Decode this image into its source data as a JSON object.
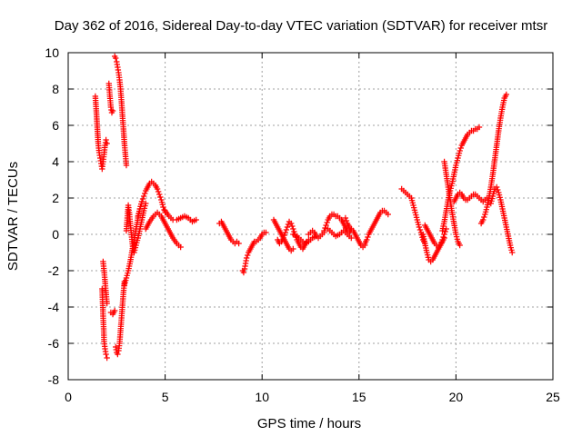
{
  "chart_data": {
    "type": "scatter",
    "title": "Day 362 of 2016, Sidereal Day-to-day VTEC variation (SDTVAR) for receiver mtsr",
    "xlabel": "GPS time / hours",
    "ylabel": "SDTVAR / TECUs",
    "xlim": [
      0,
      25
    ],
    "ylim": [
      -8,
      10
    ],
    "xticks": [
      0,
      5,
      10,
      15,
      20,
      25
    ],
    "xtick_labels": [
      "0",
      "5",
      "10",
      "15",
      "20",
      "25"
    ],
    "yticks": [
      -8,
      -6,
      -4,
      -2,
      0,
      2,
      4,
      6,
      8,
      10
    ],
    "ytick_labels": [
      "-8",
      "-6",
      "-4",
      "-2",
      "0",
      "2",
      "4",
      "6",
      "8",
      "10"
    ],
    "grid": true,
    "marker": "plus",
    "color": "#ff0000",
    "segments": [
      {
        "x": [
          1.4,
          1.45,
          1.5,
          1.55,
          1.6,
          1.65,
          1.7,
          1.75,
          1.8,
          1.85,
          1.9,
          1.95,
          2.0
        ],
        "y": [
          7.6,
          6.8,
          5.9,
          5.0,
          4.5,
          4.2,
          3.9,
          3.6,
          4.0,
          4.4,
          4.9,
          5.2,
          5.0
        ]
      },
      {
        "x": [
          1.75,
          1.78,
          1.8,
          1.83,
          1.85,
          1.9,
          1.95,
          2.0
        ],
        "y": [
          -3.0,
          -3.8,
          -4.5,
          -5.2,
          -5.9,
          -6.3,
          -6.6,
          -6.8
        ]
      },
      {
        "x": [
          1.8,
          1.85,
          1.9,
          1.95,
          2.0
        ],
        "y": [
          -1.5,
          -2.0,
          -2.6,
          -3.2,
          -3.8
        ]
      },
      {
        "x": [
          2.1,
          2.15,
          2.2,
          2.25,
          2.3
        ],
        "y": [
          8.3,
          7.6,
          7.0,
          6.7,
          6.8
        ]
      },
      {
        "x": [
          2.2,
          2.3,
          2.4
        ],
        "y": [
          -4.3,
          -4.4,
          -4.2
        ]
      },
      {
        "x": [
          2.4,
          2.45,
          2.5,
          2.55,
          2.6,
          2.65,
          2.7,
          2.75,
          2.8,
          2.85,
          2.9,
          2.95,
          3.0
        ],
        "y": [
          9.8,
          9.7,
          9.5,
          9.2,
          8.9,
          8.5,
          8.0,
          7.3,
          6.5,
          5.8,
          5.0,
          4.4,
          3.8
        ]
      },
      {
        "x": [
          2.45,
          2.5,
          2.55,
          2.6,
          2.65,
          2.7,
          2.75,
          2.8,
          2.85,
          2.9
        ],
        "y": [
          -6.2,
          -6.5,
          -6.6,
          -6.4,
          -6.0,
          -5.3,
          -4.6,
          -3.9,
          -3.2,
          -2.6
        ]
      },
      {
        "x": [
          2.9,
          3.0,
          3.1,
          3.2,
          3.3,
          3.4,
          3.5,
          3.6,
          3.7,
          3.8
        ],
        "y": [
          -2.8,
          -2.4,
          -2.0,
          -1.5,
          -0.9,
          -0.3,
          0.3,
          0.9,
          1.4,
          1.8
        ]
      },
      {
        "x": [
          3.0,
          3.05,
          3.1,
          3.15,
          3.2,
          3.25,
          3.3,
          3.35,
          3.4
        ],
        "y": [
          0.2,
          0.9,
          1.6,
          1.2,
          0.6,
          0.1,
          -0.4,
          -0.9,
          -0.5
        ]
      },
      {
        "x": [
          3.4,
          3.5,
          3.6,
          3.7,
          3.8,
          3.9,
          4.0
        ],
        "y": [
          -1.0,
          -0.6,
          -0.2,
          0.3,
          0.8,
          1.3,
          1.7
        ]
      },
      {
        "x": [
          3.6,
          3.7,
          3.8,
          3.9,
          4.0,
          4.1,
          4.2,
          4.3,
          4.4,
          4.5,
          4.6,
          4.7,
          4.8,
          4.9,
          5.0
        ],
        "y": [
          1.0,
          1.4,
          1.8,
          2.1,
          2.4,
          2.6,
          2.8,
          2.9,
          2.8,
          2.7,
          2.5,
          2.2,
          1.9,
          1.5,
          1.2
        ]
      },
      {
        "x": [
          4.0,
          4.2,
          4.4,
          4.6,
          4.8,
          5.0,
          5.2,
          5.4,
          5.6,
          5.8
        ],
        "y": [
          0.3,
          0.7,
          1.0,
          1.2,
          1.0,
          0.6,
          0.2,
          -0.2,
          -0.5,
          -0.7
        ]
      },
      {
        "x": [
          5.0,
          5.2,
          5.4,
          5.6,
          5.8,
          6.0,
          6.2,
          6.4,
          6.6
        ],
        "y": [
          1.3,
          1.0,
          0.8,
          0.8,
          0.9,
          1.0,
          0.9,
          0.7,
          0.8
        ]
      },
      {
        "x": [
          7.8,
          7.9,
          8.0,
          8.1,
          8.2,
          8.3,
          8.4,
          8.5,
          8.6,
          8.7,
          8.8
        ],
        "y": [
          0.6,
          0.7,
          0.5,
          0.3,
          0.1,
          -0.1,
          -0.3,
          -0.4,
          -0.5,
          -0.4,
          -0.5
        ]
      },
      {
        "x": [
          9.0,
          9.05,
          9.1,
          9.15,
          9.2,
          9.3,
          9.4,
          9.5,
          9.6,
          9.7,
          9.8,
          9.9,
          10.0,
          10.1,
          10.2
        ],
        "y": [
          -2.0,
          -2.1,
          -1.9,
          -1.6,
          -1.3,
          -1.0,
          -0.8,
          -0.6,
          -0.4,
          -0.4,
          -0.3,
          -0.2,
          0.0,
          0.1,
          0.1
        ]
      },
      {
        "x": [
          10.6,
          10.7,
          10.8,
          10.9,
          11.0,
          11.1,
          11.2,
          11.3,
          11.4,
          11.5,
          11.6
        ],
        "y": [
          0.8,
          0.6,
          0.4,
          0.2,
          0.0,
          -0.2,
          -0.4,
          -0.6,
          -0.8,
          -0.9,
          -0.8
        ]
      },
      {
        "x": [
          10.8,
          10.9,
          11.0,
          11.1,
          11.2,
          11.3,
          11.4,
          11.5,
          11.6,
          11.7,
          11.8,
          11.9,
          12.0,
          12.1,
          12.2,
          12.3,
          12.4
        ],
        "y": [
          -0.3,
          -0.5,
          -0.4,
          -0.2,
          0.1,
          0.4,
          0.7,
          0.6,
          0.3,
          0.0,
          -0.3,
          -0.5,
          -0.7,
          -0.8,
          -0.6,
          -0.4,
          -0.3
        ]
      },
      {
        "x": [
          11.6,
          11.8,
          12.0,
          12.2,
          12.4,
          12.6,
          12.8
        ],
        "y": [
          0.0,
          -0.1,
          -0.3,
          -0.5,
          -0.4,
          -0.2,
          -0.1
        ]
      },
      {
        "x": [
          12.4,
          12.5,
          12.6,
          12.7,
          12.8,
          12.9,
          13.0,
          13.1,
          13.2
        ],
        "y": [
          0.0,
          0.1,
          0.2,
          0.1,
          -0.1,
          -0.2,
          -0.1,
          0.0,
          0.1
        ]
      },
      {
        "x": [
          13.2,
          13.3,
          13.4,
          13.5,
          13.6,
          13.7,
          13.8,
          13.9,
          14.0,
          14.1,
          14.2,
          14.3,
          14.4,
          14.5,
          14.6
        ],
        "y": [
          0.2,
          0.5,
          0.8,
          1.0,
          1.1,
          1.1,
          1.0,
          1.0,
          0.9,
          0.8,
          0.6,
          0.4,
          0.2,
          0.1,
          0.3
        ]
      },
      {
        "x": [
          13.4,
          13.6,
          13.8,
          14.0,
          14.2,
          14.4,
          14.6
        ],
        "y": [
          0.3,
          0.1,
          -0.1,
          0.0,
          0.2,
          0.0,
          -0.2
        ]
      },
      {
        "x": [
          14.3,
          14.4,
          14.5,
          14.6,
          14.7,
          14.8,
          14.9,
          15.0,
          15.1,
          15.2,
          15.3
        ],
        "y": [
          0.9,
          0.6,
          0.4,
          0.3,
          0.2,
          0.0,
          -0.2,
          -0.4,
          -0.6,
          -0.7,
          -0.6
        ]
      },
      {
        "x": [
          15.3,
          15.4,
          15.5,
          15.6,
          15.7,
          15.8,
          15.9,
          16.0,
          16.1,
          16.2,
          16.3,
          16.4,
          16.5
        ],
        "y": [
          -0.5,
          -0.3,
          0.0,
          0.2,
          0.4,
          0.6,
          0.8,
          1.0,
          1.2,
          1.3,
          1.3,
          1.2,
          1.1
        ]
      },
      {
        "x": [
          17.2,
          17.3,
          17.4,
          17.5,
          17.6,
          17.7,
          17.8,
          17.9,
          18.0,
          18.1,
          18.2,
          18.3,
          18.4
        ],
        "y": [
          2.5,
          2.4,
          2.3,
          2.2,
          2.1,
          2.0,
          1.6,
          1.2,
          0.8,
          0.4,
          0.1,
          -0.3,
          -0.5
        ]
      },
      {
        "x": [
          18.3,
          18.4,
          18.5,
          18.6,
          18.7,
          18.8,
          18.9,
          19.0,
          19.1,
          19.2,
          19.3,
          19.4,
          19.5
        ],
        "y": [
          0.0,
          -0.5,
          -1.0,
          -1.4,
          -1.5,
          -1.4,
          -1.2,
          -1.0,
          -0.8,
          -0.6,
          -0.3,
          0.0,
          0.3
        ]
      },
      {
        "x": [
          18.4,
          18.5,
          18.6,
          18.7,
          18.8,
          18.9,
          19.0,
          19.1,
          19.2,
          19.3,
          19.4
        ],
        "y": [
          0.5,
          0.3,
          0.1,
          -0.1,
          -0.3,
          -0.5,
          -0.6,
          -0.7,
          -0.6,
          -0.4,
          -0.2
        ]
      },
      {
        "x": [
          19.3,
          19.4,
          19.5,
          19.6,
          19.7,
          19.8,
          19.9,
          20.0,
          20.1,
          20.2,
          20.3,
          20.4,
          20.5,
          20.6,
          20.7,
          20.8,
          20.9,
          21.0,
          21.1,
          21.2
        ],
        "y": [
          0.2,
          0.7,
          1.3,
          1.9,
          2.4,
          2.8,
          3.3,
          3.8,
          4.2,
          4.6,
          4.9,
          5.1,
          5.3,
          5.5,
          5.6,
          5.7,
          5.7,
          5.8,
          5.8,
          5.9
        ]
      },
      {
        "x": [
          19.4,
          19.5,
          19.6,
          19.7,
          19.8,
          19.9,
          20.0,
          20.1,
          20.2
        ],
        "y": [
          4.0,
          3.3,
          2.6,
          1.9,
          1.2,
          0.6,
          0.0,
          -0.4,
          -0.6
        ]
      },
      {
        "x": [
          19.9,
          20.0,
          20.1,
          20.2,
          20.3,
          20.4,
          20.5,
          20.6,
          20.7,
          20.8,
          20.9,
          21.0,
          21.1,
          21.2,
          21.3,
          21.4,
          21.5,
          21.6
        ],
        "y": [
          1.8,
          2.0,
          2.2,
          2.3,
          2.2,
          2.0,
          1.9,
          1.9,
          2.0,
          2.1,
          2.2,
          2.2,
          2.1,
          2.0,
          1.9,
          1.8,
          1.9,
          2.0
        ]
      },
      {
        "x": [
          21.3,
          21.4,
          21.5,
          21.6,
          21.7,
          21.8,
          21.9,
          22.0,
          22.1,
          22.2,
          22.3,
          22.4,
          22.5,
          22.6
        ],
        "y": [
          0.6,
          0.8,
          1.1,
          1.5,
          2.0,
          2.6,
          3.3,
          4.1,
          4.9,
          5.7,
          6.4,
          7.0,
          7.5,
          7.7
        ]
      },
      {
        "x": [
          21.8,
          21.9,
          22.0,
          22.1,
          22.2,
          22.3,
          22.4,
          22.5,
          22.6,
          22.7,
          22.8,
          22.9
        ],
        "y": [
          1.7,
          2.1,
          2.5,
          2.6,
          2.3,
          1.9,
          1.4,
          0.9,
          0.4,
          -0.1,
          -0.6,
          -1.0
        ]
      }
    ]
  }
}
